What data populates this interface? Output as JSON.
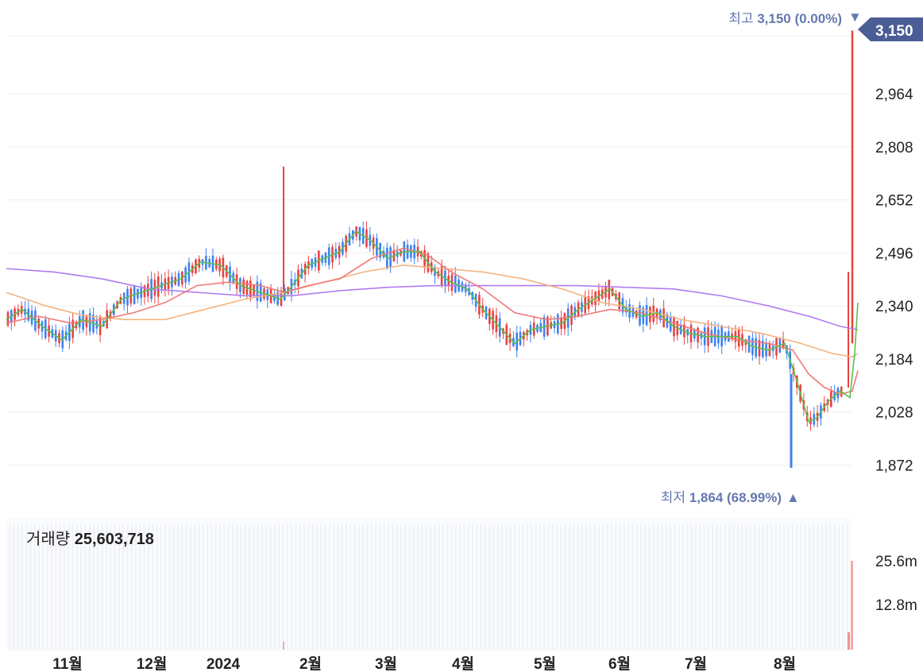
{
  "chart_data": {
    "type": "candlestick",
    "y_ticks": [
      "2,964",
      "2,808",
      "2,652",
      "2,496",
      "2,340",
      "2,184",
      "2,028",
      "1,872"
    ],
    "ylim": [
      1810,
      3170
    ],
    "x_labels": [
      "11월",
      "12월",
      "2024",
      "2월",
      "3월",
      "4월",
      "5월",
      "6월",
      "7월",
      "8월"
    ],
    "current_price": "3,150",
    "high": {
      "label": "최고",
      "value": "3,150",
      "pct": "(0.00%)",
      "arrow": "▼"
    },
    "low": {
      "label": "최저",
      "value": "1,864",
      "pct": "(68.99%)",
      "arrow": "▲"
    },
    "volume": {
      "label": "거래량",
      "value": "25,603,718",
      "ticks": [
        "25.6m",
        "12.8m"
      ]
    },
    "colors": {
      "up": "#e8423f",
      "down": "#3d82f0",
      "ma5": "#5cbf4f",
      "ma20": "#f07a7a",
      "ma60": "#f5b47f",
      "ma120": "#b07cf0",
      "marker": "#6579b0",
      "grid": "#eeeeee"
    },
    "moving_averages": {
      "ma5": [
        [
          0,
          2300
        ],
        [
          20,
          2330
        ],
        [
          45,
          2280
        ],
        [
          70,
          2240
        ],
        [
          95,
          2300
        ],
        [
          120,
          2280
        ],
        [
          145,
          2360
        ],
        [
          170,
          2380
        ],
        [
          195,
          2400
        ],
        [
          220,
          2420
        ],
        [
          245,
          2470
        ],
        [
          270,
          2460
        ],
        [
          295,
          2400
        ],
        [
          320,
          2380
        ],
        [
          345,
          2360
        ],
        [
          360,
          2400
        ],
        [
          380,
          2460
        ],
        [
          400,
          2480
        ],
        [
          420,
          2500
        ],
        [
          440,
          2560
        ],
        [
          460,
          2530
        ],
        [
          480,
          2480
        ],
        [
          500,
          2500
        ],
        [
          520,
          2500
        ],
        [
          540,
          2440
        ],
        [
          560,
          2410
        ],
        [
          580,
          2390
        ],
        [
          600,
          2330
        ],
        [
          620,
          2280
        ],
        [
          640,
          2230
        ],
        [
          660,
          2270
        ],
        [
          680,
          2280
        ],
        [
          700,
          2290
        ],
        [
          720,
          2330
        ],
        [
          740,
          2360
        ],
        [
          760,
          2390
        ],
        [
          780,
          2330
        ],
        [
          800,
          2310
        ],
        [
          820,
          2320
        ],
        [
          840,
          2280
        ],
        [
          860,
          2260
        ],
        [
          880,
          2250
        ],
        [
          900,
          2250
        ],
        [
          920,
          2250
        ],
        [
          940,
          2220
        ],
        [
          960,
          2210
        ],
        [
          980,
          2230
        ],
        [
          995,
          2120
        ],
        [
          1010,
          2000
        ],
        [
          1020,
          2010
        ],
        [
          1035,
          2060
        ],
        [
          1050,
          2090
        ],
        [
          1062,
          2070
        ],
        [
          1068,
          2200
        ],
        [
          1072,
          2350
        ]
      ],
      "ma20": [
        [
          0,
          2290
        ],
        [
          40,
          2310
        ],
        [
          80,
          2290
        ],
        [
          120,
          2300
        ],
        [
          160,
          2320
        ],
        [
          200,
          2350
        ],
        [
          240,
          2400
        ],
        [
          280,
          2410
        ],
        [
          320,
          2400
        ],
        [
          350,
          2380
        ],
        [
          380,
          2400
        ],
        [
          420,
          2420
        ],
        [
          460,
          2480
        ],
        [
          500,
          2510
        ],
        [
          530,
          2490
        ],
        [
          560,
          2440
        ],
        [
          600,
          2390
        ],
        [
          640,
          2320
        ],
        [
          680,
          2300
        ],
        [
          720,
          2310
        ],
        [
          760,
          2330
        ],
        [
          800,
          2320
        ],
        [
          840,
          2290
        ],
        [
          880,
          2260
        ],
        [
          920,
          2240
        ],
        [
          960,
          2230
        ],
        [
          990,
          2210
        ],
        [
          1010,
          2140
        ],
        [
          1030,
          2100
        ],
        [
          1050,
          2080
        ],
        [
          1065,
          2090
        ],
        [
          1072,
          2150
        ]
      ],
      "ma60": [
        [
          0,
          2380
        ],
        [
          50,
          2340
        ],
        [
          100,
          2310
        ],
        [
          150,
          2300
        ],
        [
          200,
          2300
        ],
        [
          250,
          2330
        ],
        [
          300,
          2360
        ],
        [
          350,
          2380
        ],
        [
          400,
          2410
        ],
        [
          450,
          2440
        ],
        [
          500,
          2460
        ],
        [
          550,
          2450
        ],
        [
          600,
          2440
        ],
        [
          650,
          2420
        ],
        [
          700,
          2390
        ],
        [
          750,
          2350
        ],
        [
          800,
          2330
        ],
        [
          850,
          2300
        ],
        [
          900,
          2280
        ],
        [
          950,
          2260
        ],
        [
          1000,
          2230
        ],
        [
          1040,
          2200
        ],
        [
          1065,
          2190
        ],
        [
          1072,
          2200
        ]
      ],
      "ma120": [
        [
          0,
          2450
        ],
        [
          60,
          2440
        ],
        [
          120,
          2420
        ],
        [
          180,
          2390
        ],
        [
          240,
          2380
        ],
        [
          300,
          2370
        ],
        [
          360,
          2370
        ],
        [
          420,
          2385
        ],
        [
          480,
          2395
        ],
        [
          540,
          2400
        ],
        [
          600,
          2400
        ],
        [
          660,
          2400
        ],
        [
          720,
          2400
        ],
        [
          780,
          2395
        ],
        [
          840,
          2390
        ],
        [
          900,
          2370
        ],
        [
          960,
          2340
        ],
        [
          1010,
          2310
        ],
        [
          1050,
          2280
        ],
        [
          1072,
          2270
        ]
      ]
    }
  }
}
